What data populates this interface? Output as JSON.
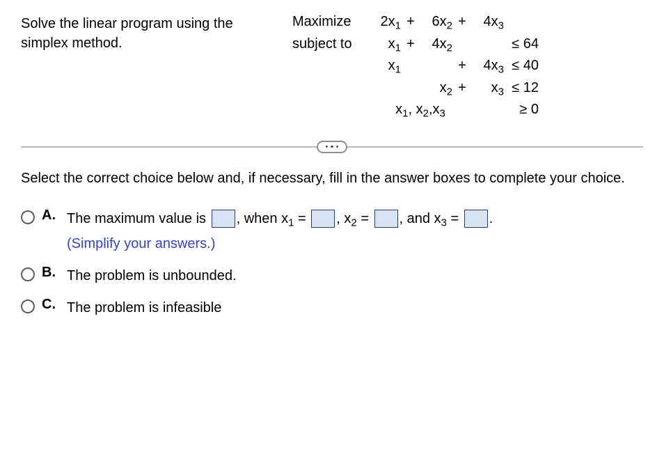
{
  "prompt": "Solve the linear program using the simplex method.",
  "lp": {
    "maximize_label": "Maximize",
    "subject_to_label": "subject to",
    "objective": {
      "x1": "2x",
      "p1": "+",
      "x2": "6x",
      "p2": "+",
      "x3": "4x"
    },
    "constraints": [
      {
        "x1": "x",
        "p1": "+",
        "x2": "4x",
        "p2": "",
        "x3": "",
        "rhs": "≤ 64"
      },
      {
        "x1": "x",
        "p1": "",
        "x2": "",
        "p2": "+",
        "x3": "4x",
        "rhs": "≤ 40"
      },
      {
        "x1": "",
        "p1": "",
        "x2": "x",
        "p2": "+",
        "x3": "x",
        "rhs": "≤ 12"
      }
    ],
    "nonneg": {
      "vars": "x₁, x₂,x₃",
      "rhs": "≥ 0"
    }
  },
  "instruction": "Select the correct choice below and, if necessary, fill in the answer boxes to complete your choice.",
  "choices": {
    "A": {
      "letter": "A.",
      "t1": "The maximum value is ",
      "t2": ", when x",
      "t3": " = ",
      "t4": ", x",
      "t5": " = ",
      "t6": ", and x",
      "t7": " = ",
      "t8": ".",
      "hint": "(Simplify your answers.)"
    },
    "B": {
      "letter": "B.",
      "text": "The problem is unbounded."
    },
    "C": {
      "letter": "C.",
      "text": "The problem is infeasible"
    }
  },
  "style": {
    "body_font_size": 20,
    "answer_box_bg": "#d6e3f3",
    "answer_box_border": "#2a3a76",
    "hint_color": "#3344cc",
    "separator_color": "#b9b9bb",
    "radio_border": "#5b5b63"
  }
}
